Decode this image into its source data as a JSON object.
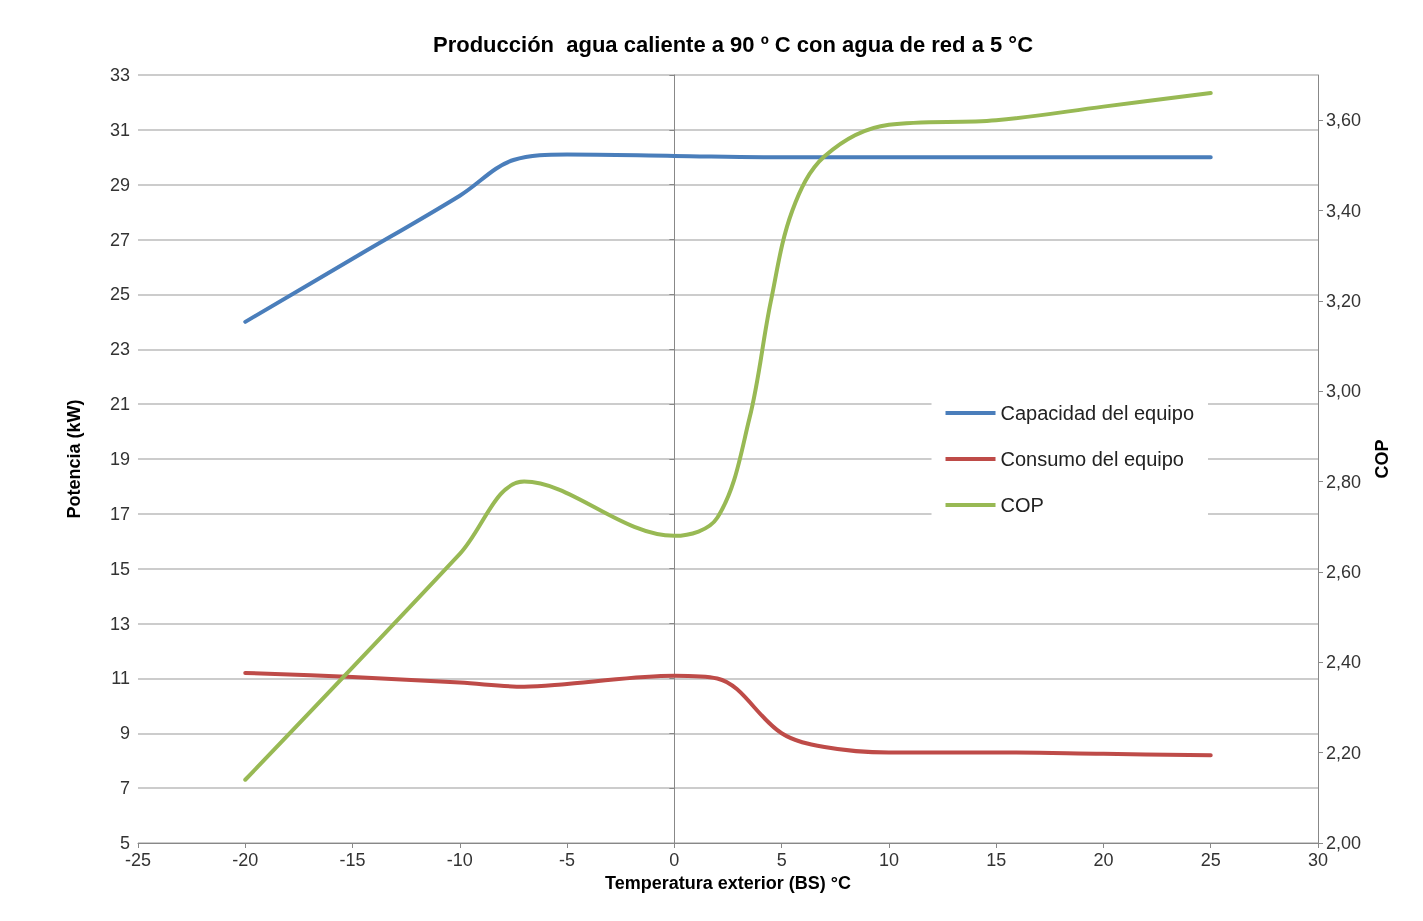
{
  "chart_data": {
    "type": "line",
    "title": "Producción  agua caliente a 90 º C con agua de red a 5 °C",
    "xlabel": "Temperatura exterior (BS) °C",
    "ylabel": "Potencia (kW)",
    "y2label": "COP",
    "xlim": [
      -25,
      30
    ],
    "xticks": [
      -25,
      -20,
      -15,
      -10,
      -5,
      0,
      5,
      10,
      15,
      20,
      25,
      30
    ],
    "ylim": [
      5,
      33
    ],
    "yticks": [
      5,
      7,
      9,
      11,
      13,
      15,
      17,
      19,
      21,
      23,
      25,
      27,
      29,
      31,
      33
    ],
    "y2lim": [
      2,
      3.7
    ],
    "y2ticks": [
      {
        "value": 2,
        "label": "2,00"
      },
      {
        "value": 2.2,
        "label": "2,20"
      },
      {
        "value": 2.4,
        "label": "2,40"
      },
      {
        "value": 2.6,
        "label": "2,60"
      },
      {
        "value": 2.8,
        "label": "2,80"
      },
      {
        "value": 3,
        "label": "3,00"
      },
      {
        "value": 3.2,
        "label": "3,20"
      },
      {
        "value": 3.4,
        "label": "3,40"
      },
      {
        "value": 3.6,
        "label": "3,60"
      }
    ],
    "grid": "y",
    "legend": "right",
    "marker": "none",
    "line_style": "solid",
    "series": [
      {
        "name": "Capacidad del equipo",
        "color": "#4a7ebb",
        "x": [
          -20,
          -15,
          -10,
          -7.5,
          -5,
          0,
          5,
          10,
          15,
          20,
          25
        ],
        "values": [
          24,
          26.3,
          28.6,
          29.9,
          30.1,
          30.05,
          30,
          30,
          30,
          30,
          30
        ]
      },
      {
        "name": "Consumo del equipo",
        "color": "#be4b48",
        "x": [
          -20,
          -15,
          -10,
          -7,
          -5,
          0,
          2,
          5,
          7,
          10,
          15,
          20,
          25
        ],
        "values": [
          11.2,
          11.05,
          10.85,
          10.7,
          10.8,
          11.1,
          11,
          9,
          8.5,
          8.3,
          8.3,
          8.25,
          8.2
        ]
      },
      {
        "name": "COP",
        "color": "#98b954",
        "axis": "y2",
        "x": [
          -20,
          -10,
          -7,
          0,
          2,
          3.5,
          4.5,
          5.5,
          7,
          10,
          15,
          20,
          25
        ],
        "values": [
          2.14,
          2.64,
          2.8,
          2.68,
          2.72,
          2.94,
          3.2,
          3.4,
          3.52,
          3.59,
          3.6,
          3.63,
          3.66
        ]
      }
    ]
  }
}
